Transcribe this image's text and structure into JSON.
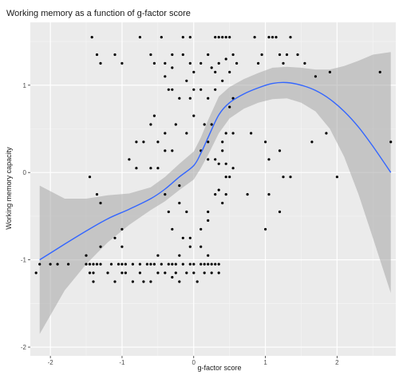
{
  "colors": {
    "panel": "#ebebeb",
    "grid_major": "#ffffff",
    "grid_minor": "#f5f5f5",
    "point": "#000000",
    "smooth_line": "#3366ff",
    "ribbon": "#a6a6a6"
  },
  "chart_data": {
    "type": "scatter",
    "title": "Working memory as a function of g-factor score",
    "xlabel": "g-factor score",
    "ylabel": "Working memory capacity",
    "xlim": [
      -2.28,
      2.82
    ],
    "ylim": [
      -2.1,
      1.72
    ],
    "xticks": [
      -2,
      -1,
      0,
      1,
      2
    ],
    "yticks": [
      -2,
      -1,
      0,
      1
    ],
    "grid": true,
    "legend": "none",
    "points": [
      [
        -1.42,
        1.55
      ],
      [
        -1.35,
        1.35
      ],
      [
        -1.3,
        1.25
      ],
      [
        -1.1,
        1.35
      ],
      [
        -1.0,
        1.25
      ],
      [
        -0.75,
        1.55
      ],
      [
        -0.6,
        1.35
      ],
      [
        -0.55,
        1.25
      ],
      [
        -0.45,
        1.55
      ],
      [
        -0.4,
        1.25
      ],
      [
        -0.3,
        1.35
      ],
      [
        -0.15,
        1.55
      ],
      [
        -0.05,
        1.55
      ],
      [
        -0.15,
        1.35
      ],
      [
        -0.05,
        1.25
      ],
      [
        0.0,
        1.15
      ],
      [
        0.1,
        1.25
      ],
      [
        0.2,
        1.35
      ],
      [
        0.3,
        1.55
      ],
      [
        0.35,
        1.55
      ],
      [
        0.4,
        1.55
      ],
      [
        0.45,
        1.55
      ],
      [
        0.5,
        1.55
      ],
      [
        0.55,
        1.35
      ],
      [
        0.6,
        1.25
      ],
      [
        0.5,
        1.15
      ],
      [
        0.3,
        1.15
      ],
      [
        0.85,
        1.55
      ],
      [
        0.95,
        1.35
      ],
      [
        1.05,
        1.55
      ],
      [
        1.1,
        1.55
      ],
      [
        1.15,
        1.55
      ],
      [
        1.2,
        1.35
      ],
      [
        1.25,
        1.25
      ],
      [
        1.45,
        1.35
      ],
      [
        1.55,
        1.25
      ],
      [
        1.9,
        1.15
      ],
      [
        1.7,
        1.1
      ],
      [
        2.6,
        1.15
      ],
      [
        0.9,
        1.25
      ],
      [
        0.45,
        1.3
      ],
      [
        1.3,
        1.35
      ],
      [
        1.35,
        1.55
      ],
      [
        0.35,
        1.25
      ],
      [
        0.25,
        1.2
      ],
      [
        -0.3,
        1.2
      ],
      [
        -0.4,
        1.1
      ],
      [
        -0.3,
        0.95
      ],
      [
        -0.1,
        1.05
      ],
      [
        0.0,
        0.95
      ],
      [
        0.1,
        0.95
      ],
      [
        0.3,
        0.95
      ],
      [
        0.4,
        1.05
      ],
      [
        0.2,
        0.85
      ],
      [
        0.5,
        0.75
      ],
      [
        0.55,
        0.85
      ],
      [
        0.55,
        0.45
      ],
      [
        0.45,
        0.45
      ],
      [
        0.25,
        0.55
      ],
      [
        -0.2,
        0.85
      ],
      [
        -0.35,
        0.95
      ],
      [
        0.0,
        0.65
      ],
      [
        0.15,
        0.55
      ],
      [
        -0.1,
        0.45
      ],
      [
        -0.4,
        0.45
      ],
      [
        -0.5,
        0.35
      ],
      [
        -0.6,
        0.55
      ],
      [
        -0.55,
        0.65
      ],
      [
        -0.4,
        0.25
      ],
      [
        -0.3,
        0.25
      ],
      [
        -0.7,
        0.35
      ],
      [
        -0.8,
        0.35
      ],
      [
        -0.9,
        0.15
      ],
      [
        -0.8,
        0.05
      ],
      [
        -0.6,
        0.05
      ],
      [
        -0.5,
        0.05
      ],
      [
        0.2,
        0.35
      ],
      [
        0.4,
        0.35
      ],
      [
        0.4,
        0.25
      ],
      [
        0.3,
        0.15
      ],
      [
        0.2,
        0.15
      ],
      [
        0.1,
        0.25
      ],
      [
        0.35,
        0.1
      ],
      [
        0.45,
        0.1
      ],
      [
        0.55,
        0.05
      ],
      [
        -0.25,
        0.55
      ],
      [
        -0.05,
        0.85
      ],
      [
        0.8,
        0.45
      ],
      [
        1.0,
        0.35
      ],
      [
        1.2,
        0.25
      ],
      [
        1.25,
        -0.05
      ],
      [
        1.05,
        -0.25
      ],
      [
        1.2,
        -0.45
      ],
      [
        1.35,
        -0.05
      ],
      [
        1.05,
        0.15
      ],
      [
        0.45,
        -0.05
      ],
      [
        0.35,
        -0.2
      ],
      [
        0.3,
        -0.25
      ],
      [
        0.4,
        -0.35
      ],
      [
        0.45,
        -0.25
      ],
      [
        0.5,
        -0.05
      ],
      [
        0.75,
        -0.25
      ],
      [
        0.2,
        -0.45
      ],
      [
        0.2,
        -0.55
      ],
      [
        0.1,
        -0.65
      ],
      [
        -0.1,
        -0.45
      ],
      [
        -0.2,
        -0.35
      ],
      [
        -0.35,
        -0.45
      ],
      [
        -0.4,
        -0.25
      ],
      [
        -0.2,
        -0.15
      ],
      [
        -1.45,
        -0.05
      ],
      [
        -1.3,
        -0.35
      ],
      [
        -1.35,
        -0.25
      ],
      [
        -1.0,
        -0.65
      ],
      [
        -1.1,
        -0.75
      ],
      [
        -1.0,
        -0.85
      ],
      [
        -0.3,
        -0.65
      ],
      [
        -0.15,
        -0.75
      ],
      [
        -0.05,
        -0.75
      ],
      [
        -0.05,
        -0.85
      ],
      [
        0.1,
        -0.85
      ],
      [
        2.0,
        -0.05
      ],
      [
        2.75,
        0.35
      ],
      [
        1.85,
        0.45
      ],
      [
        1.65,
        0.35
      ],
      [
        1.0,
        -0.65
      ],
      [
        -2.2,
        -1.15
      ],
      [
        -2.15,
        -1.05
      ],
      [
        -2.0,
        -1.05
      ],
      [
        -1.9,
        -1.05
      ],
      [
        -1.75,
        -1.05
      ],
      [
        -1.5,
        -1.05
      ],
      [
        -1.45,
        -1.05
      ],
      [
        -1.4,
        -1.05
      ],
      [
        -1.35,
        -1.05
      ],
      [
        -1.3,
        -1.05
      ],
      [
        -1.15,
        -1.05
      ],
      [
        -1.05,
        -1.05
      ],
      [
        -1.0,
        -1.05
      ],
      [
        -0.95,
        -1.05
      ],
      [
        -0.85,
        -1.05
      ],
      [
        -0.75,
        -1.05
      ],
      [
        -0.65,
        -1.05
      ],
      [
        -0.6,
        -1.05
      ],
      [
        -0.55,
        -1.05
      ],
      [
        -0.45,
        -1.05
      ],
      [
        -0.35,
        -1.05
      ],
      [
        -0.3,
        -1.05
      ],
      [
        -0.25,
        -1.05
      ],
      [
        -0.15,
        -1.05
      ],
      [
        -0.05,
        -1.05
      ],
      [
        0.0,
        -1.05
      ],
      [
        0.1,
        -1.05
      ],
      [
        0.15,
        -1.05
      ],
      [
        0.2,
        -1.05
      ],
      [
        0.25,
        -1.05
      ],
      [
        0.3,
        -1.05
      ],
      [
        0.35,
        -1.05
      ],
      [
        -1.45,
        -1.15
      ],
      [
        -1.4,
        -1.25
      ],
      [
        -1.2,
        -1.15
      ],
      [
        -1.1,
        -1.25
      ],
      [
        -0.95,
        -1.15
      ],
      [
        -0.85,
        -1.25
      ],
      [
        -0.75,
        -1.15
      ],
      [
        -0.6,
        -1.25
      ],
      [
        -0.5,
        -1.15
      ],
      [
        -0.4,
        -1.15
      ],
      [
        -0.25,
        -1.15
      ],
      [
        -0.2,
        -1.25
      ],
      [
        -0.1,
        -1.15
      ],
      [
        0.0,
        -1.15
      ],
      [
        0.15,
        -1.15
      ],
      [
        0.25,
        -1.15
      ],
      [
        0.35,
        -1.15
      ],
      [
        -1.4,
        -1.15
      ],
      [
        -1.0,
        -1.15
      ],
      [
        -0.7,
        -1.25
      ],
      [
        -0.3,
        -1.2
      ],
      [
        0.05,
        -1.25
      ],
      [
        -1.5,
        -0.95
      ],
      [
        -1.3,
        -0.85
      ],
      [
        -0.5,
        -0.95
      ],
      [
        -0.2,
        -0.95
      ],
      [
        0.2,
        -0.95
      ]
    ],
    "smooth": {
      "method": "loess",
      "x": [
        -2.15,
        -1.8,
        -1.5,
        -1.2,
        -0.9,
        -0.6,
        -0.4,
        -0.2,
        0.0,
        0.1,
        0.2,
        0.35,
        0.5,
        0.7,
        0.9,
        1.1,
        1.3,
        1.5,
        1.7,
        1.9,
        2.1,
        2.3,
        2.5,
        2.75
      ],
      "y": [
        -1.0,
        -0.82,
        -0.67,
        -0.53,
        -0.42,
        -0.3,
        -0.19,
        -0.05,
        0.08,
        0.22,
        0.4,
        0.66,
        0.8,
        0.9,
        0.97,
        1.02,
        1.03,
        1.0,
        0.94,
        0.84,
        0.7,
        0.52,
        0.3,
        0.0
      ],
      "lower": [
        -1.85,
        -1.35,
        -1.05,
        -0.8,
        -0.6,
        -0.43,
        -0.33,
        -0.2,
        -0.08,
        0.05,
        0.2,
        0.45,
        0.62,
        0.73,
        0.8,
        0.84,
        0.85,
        0.8,
        0.7,
        0.5,
        0.18,
        -0.25,
        -0.75,
        -1.38
      ],
      "upper": [
        -0.15,
        -0.3,
        -0.3,
        -0.26,
        -0.24,
        -0.17,
        -0.05,
        0.1,
        0.24,
        0.4,
        0.6,
        0.87,
        0.98,
        1.07,
        1.14,
        1.2,
        1.21,
        1.2,
        1.18,
        1.18,
        1.22,
        1.28,
        1.35,
        1.38
      ]
    }
  }
}
